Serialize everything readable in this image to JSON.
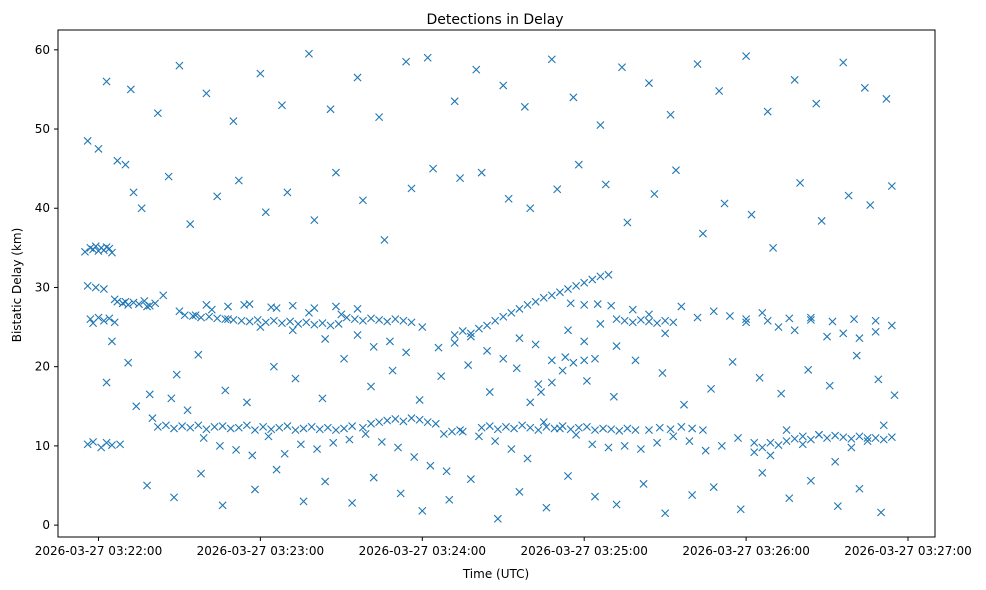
{
  "chart_data": {
    "type": "scatter",
    "title": "Detections in Delay",
    "xlabel": "Time (UTC)",
    "ylabel": "Bistatic Delay (km)",
    "x_ticks": [
      "2026-03-27 03:22:00",
      "2026-03-27 03:23:00",
      "2026-03-27 03:24:00",
      "2026-03-27 03:25:00",
      "2026-03-27 03:26:00",
      "2026-03-27 03:27:00"
    ],
    "y_ticks": [
      0,
      10,
      20,
      30,
      40,
      50,
      60
    ],
    "xlim": [
      "2026-03-27 03:21:45",
      "2026-03-27 03:27:10"
    ],
    "ylim": [
      -1.5,
      62.5
    ],
    "marker": "x",
    "color": "#1f77b4",
    "grid": false,
    "series": [
      {
        "name": "",
        "x": [
          "03:21:55",
          "03:21:57",
          "03:21:58",
          "03:21:59",
          "03:22:00",
          "03:22:01",
          "03:22:02",
          "03:22:03",
          "03:22:04",
          "03:22:05",
          "03:21:57",
          "03:21:58",
          "03:22:00",
          "03:22:02",
          "03:22:04",
          "03:22:06",
          "03:21:56",
          "03:21:58",
          "03:22:01",
          "03:22:03",
          "03:22:05",
          "03:21:56",
          "03:21:59",
          "03:22:02",
          "03:22:06",
          "03:22:09",
          "03:21:56",
          "03:22:00",
          "03:22:03",
          "03:22:07",
          "03:22:10",
          "03:22:13",
          "03:22:07",
          "03:22:09",
          "03:22:11",
          "03:22:13",
          "03:22:15",
          "03:22:17",
          "03:22:19",
          "03:22:21",
          "03:22:22",
          "03:22:25",
          "03:22:28",
          "03:22:31",
          "03:22:34",
          "03:22:37",
          "03:22:40",
          "03:22:43",
          "03:22:46",
          "03:22:49",
          "03:22:52",
          "03:22:55",
          "03:22:58",
          "03:23:01",
          "03:23:04",
          "03:23:07",
          "03:23:10",
          "03:23:13",
          "03:23:16",
          "03:23:19",
          "03:23:22",
          "03:23:25",
          "03:23:28",
          "03:23:31",
          "03:23:34",
          "03:23:38",
          "03:23:41",
          "03:23:44",
          "03:23:47",
          "03:23:50",
          "03:23:53",
          "03:23:56",
          "03:23:59",
          "03:24:02",
          "03:24:05",
          "03:24:08",
          "03:24:11",
          "03:24:14",
          "03:24:22",
          "03:24:25",
          "03:24:28",
          "03:24:31",
          "03:24:34",
          "03:24:37",
          "03:24:40",
          "03:24:43",
          "03:24:46",
          "03:24:49",
          "03:24:52",
          "03:24:55",
          "03:24:58",
          "03:25:01",
          "03:25:04",
          "03:25:07",
          "03:25:10",
          "03:25:13",
          "03:25:16",
          "03:25:19",
          "03:24:40",
          "03:24:44",
          "03:24:48",
          "03:24:52",
          "03:24:56",
          "03:25:00",
          "03:25:04",
          "03:25:24",
          "03:25:28",
          "03:25:32",
          "03:25:36",
          "03:25:40",
          "03:25:44",
          "03:26:03",
          "03:26:06",
          "03:26:09",
          "03:26:12",
          "03:26:15",
          "03:26:18",
          "03:26:21",
          "03:26:24",
          "03:26:27",
          "03:26:30",
          "03:26:33",
          "03:26:36",
          "03:26:39",
          "03:26:42",
          "03:26:45",
          "03:26:48",
          "03:26:51",
          "03:26:54",
          "03:22:32",
          "03:22:35",
          "03:22:38",
          "03:22:41",
          "03:22:44",
          "03:22:47",
          "03:22:50",
          "03:22:53",
          "03:22:56",
          "03:22:59",
          "03:23:02",
          "03:23:05",
          "03:23:08",
          "03:23:11",
          "03:23:14",
          "03:23:17",
          "03:23:20",
          "03:23:23",
          "03:23:26",
          "03:23:29",
          "03:23:32",
          "03:23:35",
          "03:23:38",
          "03:23:41",
          "03:23:44",
          "03:23:47",
          "03:23:50",
          "03:23:53",
          "03:23:56",
          "03:24:12",
          "03:24:15",
          "03:24:18",
          "03:24:21",
          "03:24:24",
          "03:24:27",
          "03:24:30",
          "03:24:33",
          "03:24:36",
          "03:24:39",
          "03:24:42",
          "03:24:45",
          "03:24:48",
          "03:24:51",
          "03:24:54",
          "03:24:57",
          "03:25:00",
          "03:25:03",
          "03:25:06",
          "03:25:09",
          "03:25:12",
          "03:25:15",
          "03:25:18",
          "03:25:21",
          "03:25:24",
          "03:25:27",
          "03:25:30",
          "03:25:33",
          "03:22:40",
          "03:22:48",
          "03:22:56",
          "03:23:04",
          "03:23:12",
          "03:23:20",
          "03:23:28",
          "03:23:36",
          "03:24:55",
          "03:25:00",
          "03:25:05",
          "03:25:10",
          "03:26:00",
          "03:26:08",
          "03:26:16",
          "03:26:24",
          "03:26:32",
          "03:26:40",
          "03:26:48",
          "03:22:10",
          "03:22:18",
          "03:22:24",
          "03:22:30",
          "03:22:36",
          "03:22:42",
          "03:22:48",
          "03:22:54",
          "03:23:00",
          "03:23:06",
          "03:23:12",
          "03:23:18",
          "03:23:24",
          "03:23:30",
          "03:23:36",
          "03:23:42",
          "03:23:48",
          "03:23:54",
          "03:24:00",
          "03:24:06",
          "03:24:12",
          "03:24:18",
          "03:24:24",
          "03:24:30",
          "03:24:36",
          "03:24:42",
          "03:24:48",
          "03:24:54",
          "03:25:00",
          "03:25:06",
          "03:25:12",
          "03:25:18",
          "03:25:24",
          "03:25:30",
          "03:25:36",
          "03:25:42",
          "03:25:48",
          "03:25:54",
          "03:26:00",
          "03:26:06",
          "03:26:12",
          "03:26:18",
          "03:26:24",
          "03:26:30",
          "03:26:36",
          "03:26:42",
          "03:26:48",
          "03:26:54",
          "03:22:05",
          "03:22:14",
          "03:22:20",
          "03:22:27",
          "03:22:33",
          "03:22:39",
          "03:22:45",
          "03:22:51",
          "03:22:57",
          "03:23:03",
          "03:23:09",
          "03:23:15",
          "03:23:21",
          "03:23:27",
          "03:23:33",
          "03:23:39",
          "03:23:45",
          "03:23:51",
          "03:23:57",
          "03:24:03",
          "03:24:09",
          "03:24:15",
          "03:24:21",
          "03:24:27",
          "03:24:33",
          "03:24:39",
          "03:24:45",
          "03:24:51",
          "03:24:57",
          "03:25:03",
          "03:25:09",
          "03:25:15",
          "03:25:21",
          "03:25:27",
          "03:25:33",
          "03:25:39",
          "03:25:45",
          "03:25:51",
          "03:25:57",
          "03:26:03",
          "03:26:09",
          "03:26:15",
          "03:26:21",
          "03:26:27",
          "03:26:33",
          "03:26:39",
          "03:26:45",
          "03:26:51",
          "03:22:08",
          "03:22:16",
          "03:22:26",
          "03:22:34",
          "03:22:44",
          "03:22:52",
          "03:23:02",
          "03:23:10",
          "03:23:20",
          "03:23:28",
          "03:23:38",
          "03:23:46",
          "03:23:56",
          "03:24:04",
          "03:24:14",
          "03:24:22",
          "03:24:32",
          "03:24:40",
          "03:24:50",
          "03:24:58",
          "03:25:08",
          "03:25:16",
          "03:25:26",
          "03:25:34",
          "03:25:44",
          "03:25:52",
          "03:26:02",
          "03:26:10",
          "03:26:20",
          "03:26:28",
          "03:26:38",
          "03:26:46",
          "03:26:54",
          "03:22:12",
          "03:22:22",
          "03:22:30",
          "03:22:40",
          "03:22:50",
          "03:23:00",
          "03:23:08",
          "03:23:18",
          "03:23:26",
          "03:23:36",
          "03:23:44",
          "03:23:54",
          "03:24:02",
          "03:24:12",
          "03:24:20",
          "03:24:30",
          "03:24:38",
          "03:24:48",
          "03:24:56",
          "03:25:06",
          "03:25:14",
          "03:25:24",
          "03:25:32",
          "03:25:42",
          "03:25:50",
          "03:26:00",
          "03:26:08",
          "03:26:18",
          "03:26:26",
          "03:26:36",
          "03:26:44",
          "03:26:52",
          "03:22:18",
          "03:22:28",
          "03:22:38",
          "03:22:46",
          "03:22:58",
          "03:23:06",
          "03:23:16",
          "03:23:24",
          "03:23:34",
          "03:23:42",
          "03:23:52",
          "03:24:00",
          "03:24:10",
          "03:24:18",
          "03:24:28",
          "03:24:36",
          "03:24:46",
          "03:24:54",
          "03:25:04",
          "03:25:12",
          "03:25:22",
          "03:25:30",
          "03:25:40",
          "03:25:48",
          "03:25:58",
          "03:26:06",
          "03:26:16",
          "03:26:24",
          "03:26:34",
          "03:26:42",
          "03:26:50",
          "03:22:03",
          "03:22:11",
          "03:22:19",
          "03:22:29",
          "03:22:37",
          "03:22:47",
          "03:22:55",
          "03:23:05",
          "03:23:13",
          "03:23:23",
          "03:23:31",
          "03:23:41",
          "03:23:49",
          "03:23:59",
          "03:24:07",
          "03:24:17",
          "03:24:25",
          "03:24:35",
          "03:24:43",
          "03:24:53",
          "03:25:01",
          "03:25:11",
          "03:25:19",
          "03:25:29",
          "03:25:37",
          "03:25:47",
          "03:25:55",
          "03:26:05",
          "03:26:13",
          "03:26:23",
          "03:26:31",
          "03:26:41",
          "03:26:49",
          "03:26:55"
        ],
        "y": [
          34.5,
          35.0,
          34.8,
          35.2,
          34.6,
          35.0,
          34.7,
          35.1,
          34.9,
          34.4,
          26.0,
          25.5,
          26.2,
          25.8,
          26.1,
          25.6,
          10.2,
          10.5,
          9.8,
          10.4,
          10.1,
          30.2,
          30.0,
          29.8,
          28.5,
          28.0,
          48.5,
          47.5,
          56.0,
          46.0,
          45.5,
          42.0,
          28.2,
          28.0,
          27.8,
          28.1,
          27.9,
          28.3,
          27.7,
          28.0,
          12.4,
          12.6,
          12.2,
          12.5,
          12.3,
          12.6,
          12.1,
          12.4,
          12.5,
          12.2,
          12.3,
          12.6,
          12.0,
          12.4,
          12.1,
          12.3,
          12.5,
          12.0,
          12.2,
          12.4,
          12.1,
          12.3,
          12.0,
          12.2,
          12.5,
          12.3,
          12.8,
          13.0,
          13.2,
          13.4,
          13.1,
          13.5,
          13.3,
          13.0,
          12.8,
          11.5,
          11.8,
          12.0,
          12.3,
          12.5,
          12.1,
          12.4,
          12.2,
          12.6,
          12.3,
          12.0,
          12.4,
          12.2,
          12.5,
          12.1,
          12.3,
          12.4,
          12.0,
          12.2,
          12.1,
          11.9,
          12.2,
          12.0,
          15.5,
          16.8,
          18.0,
          19.5,
          20.5,
          20.8,
          21.0,
          12.0,
          12.3,
          12.1,
          12.4,
          12.2,
          12.0,
          9.2,
          9.8,
          10.4,
          10.1,
          10.6,
          10.9,
          11.2,
          10.8,
          11.4,
          11.0,
          11.3,
          11.1,
          10.9,
          11.2,
          10.6,
          11.0,
          10.8,
          11.1,
          26.5,
          26.4,
          26.2,
          26.3,
          26.1,
          26.0,
          25.9,
          25.8,
          25.7,
          25.9,
          25.6,
          25.8,
          25.5,
          25.7,
          25.4,
          25.6,
          25.3,
          25.5,
          25.2,
          25.4,
          26.2,
          26.0,
          25.8,
          26.1,
          25.9,
          25.7,
          26.0,
          25.8,
          25.6,
          24.0,
          24.5,
          23.8,
          24.8,
          25.2,
          25.8,
          26.3,
          26.8,
          27.3,
          27.8,
          28.2,
          28.7,
          29.0,
          29.4,
          29.8,
          30.2,
          30.6,
          31.0,
          31.4,
          31.6,
          26.0,
          25.8,
          25.6,
          25.9,
          25.7,
          25.5,
          25.8,
          25.6,
          27.8,
          27.6,
          27.9,
          27.5,
          27.7,
          27.4,
          27.6,
          27.3,
          28.0,
          27.8,
          27.9,
          27.7,
          26.0,
          25.8,
          26.1,
          25.9,
          25.7,
          26.0,
          25.8,
          28.2,
          27.6,
          29.0,
          27.0,
          26.5,
          27.2,
          26.0,
          27.8,
          25.0,
          27.4,
          24.6,
          26.8,
          23.5,
          26.6,
          24.0,
          22.5,
          23.2,
          21.8,
          25.0,
          22.4,
          23.0,
          24.2,
          22.0,
          21.0,
          23.6,
          22.8,
          20.8,
          24.6,
          23.2,
          25.4,
          22.6,
          27.2,
          26.6,
          24.2,
          27.6,
          26.2,
          27.0,
          26.4,
          25.6,
          26.8,
          25.0,
          24.6,
          26.2,
          23.8,
          24.2,
          23.6,
          24.4,
          25.2,
          23.2,
          15.0,
          13.5,
          16.0,
          14.5,
          11.0,
          10.0,
          9.5,
          8.8,
          11.2,
          9.0,
          10.2,
          9.6,
          10.4,
          10.8,
          11.5,
          10.5,
          9.8,
          8.6,
          7.5,
          6.8,
          11.8,
          11.2,
          10.6,
          9.6,
          8.4,
          13.0,
          12.2,
          11.4,
          10.2,
          9.8,
          10.0,
          9.6,
          10.4,
          11.2,
          10.6,
          9.4,
          10.0,
          11.0,
          10.4,
          8.8,
          12.0,
          10.2,
          11.4,
          8.0,
          9.8,
          11.0,
          12.6,
          10.2,
          40.0,
          44.0,
          38.0,
          41.5,
          43.5,
          39.5,
          42.0,
          38.5,
          44.5,
          41.0,
          36.0,
          42.5,
          45.0,
          43.8,
          44.5,
          41.2,
          40.0,
          42.4,
          45.5,
          43.0,
          38.2,
          41.8,
          44.8,
          36.8,
          40.6,
          39.2,
          35.0,
          43.2,
          38.4,
          41.6,
          40.4,
          42.8,
          55.0,
          52.0,
          58.0,
          54.5,
          51.0,
          57.0,
          53.0,
          59.5,
          52.5,
          56.5,
          51.5,
          58.5,
          59.0,
          53.5,
          57.5,
          55.5,
          52.8,
          58.8,
          54.0,
          50.5,
          57.8,
          55.8,
          51.8,
          58.2,
          54.8,
          59.2,
          52.2,
          56.2,
          53.2,
          58.4,
          55.2,
          53.8,
          5.0,
          3.5,
          6.5,
          2.5,
          4.5,
          7.0,
          3.0,
          5.5,
          2.8,
          6.0,
          4.0,
          1.8,
          3.2,
          5.8,
          0.8,
          4.2,
          2.2,
          6.2,
          3.6,
          2.6,
          5.2,
          1.5,
          3.8,
          4.8,
          2.0,
          6.6,
          3.4,
          5.6,
          2.4,
          4.6,
          1.6,
          18.0,
          20.5,
          16.5,
          19.0,
          21.5,
          17.0,
          15.5,
          20.0,
          18.5,
          16.0,
          21.0,
          17.5,
          19.5,
          15.8,
          18.8,
          20.2,
          16.8,
          19.8,
          17.8,
          21.2,
          18.2,
          16.2,
          20.8,
          19.2,
          15.2,
          17.2,
          20.6,
          18.6,
          16.6,
          19.6,
          17.6,
          21.4,
          18.4,
          16.4
        ]
      }
    ]
  }
}
